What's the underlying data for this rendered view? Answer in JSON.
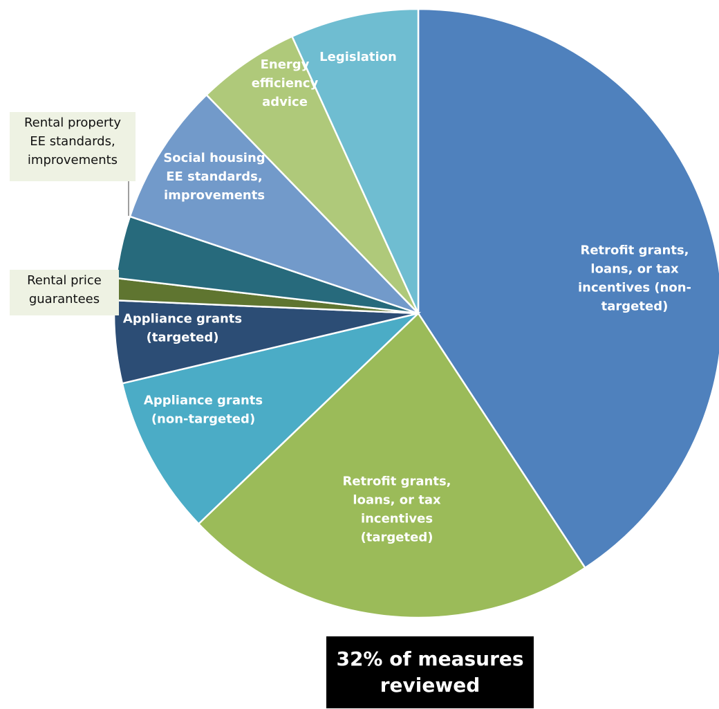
{
  "chart_data": {
    "type": "pie",
    "title": "",
    "slices": [
      {
        "label": "Retrofit grants, loans, or tax incentives (non-targeted)",
        "value": 41.9,
        "color": "#4f81bd"
      },
      {
        "label": "Retrofit grants, loans, or tax incentives (targeted)",
        "value": 22.7,
        "color": "#9bbb59"
      },
      {
        "label": "Appliance grants (non-targeted)",
        "value": 8.7,
        "color": "#4bacc6"
      },
      {
        "label": "Appliance grants (targeted)",
        "value": 4.5,
        "color": "#2c4d75"
      },
      {
        "label": "Rental price guarantees",
        "value": 1.2,
        "color": "#5f7530"
      },
      {
        "label": "Rental property EE standards, improvements",
        "value": 3.4,
        "color": "#276a7c"
      },
      {
        "label": "Social housing EE standards, improvements",
        "value": 7.8,
        "color": "#729aca"
      },
      {
        "label": "Energy efficiency advice",
        "value": 5.6,
        "color": "#afc97a"
      },
      {
        "label": "Legislation",
        "value": 7.0,
        "color": "#6fbdd1"
      }
    ],
    "legend": "none"
  },
  "callout": {
    "text": "32% of measures\nreviewed"
  }
}
